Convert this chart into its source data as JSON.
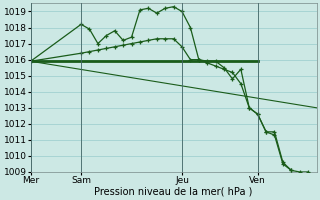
{
  "background_color": "#cce8e4",
  "grid_color": "#99cccc",
  "line_color": "#1a5c1a",
  "title": "Pression niveau de la mer( hPa )",
  "ylim": [
    1009,
    1019.5
  ],
  "yticks": [
    1009,
    1010,
    1011,
    1012,
    1013,
    1014,
    1015,
    1016,
    1017,
    1018,
    1019
  ],
  "day_labels": [
    "Mer",
    "Sam",
    "Jeu",
    "Ven"
  ],
  "day_positions": [
    0,
    6,
    18,
    27
  ],
  "xlim": [
    0,
    34
  ],
  "series1_x": [
    0,
    6,
    7,
    8,
    9,
    10,
    11,
    12,
    13,
    14,
    15,
    16,
    17,
    18,
    19,
    20,
    21,
    22,
    23,
    24,
    25,
    26,
    27,
    28,
    29,
    30,
    31,
    32,
    33
  ],
  "series1_y": [
    1015.9,
    1018.2,
    1017.9,
    1017.0,
    1017.5,
    1017.8,
    1017.2,
    1017.4,
    1019.1,
    1019.2,
    1018.9,
    1019.2,
    1019.3,
    1019.0,
    1018.0,
    1016.0,
    1015.9,
    1015.9,
    1015.5,
    1014.8,
    1015.4,
    1013.0,
    1012.6,
    1011.5,
    1011.5,
    1009.6,
    1009.1,
    1009.0,
    1009.0
  ],
  "series2_x": [
    0,
    6,
    7,
    8,
    9,
    10,
    11,
    12,
    13,
    14,
    15,
    16,
    17,
    18,
    19,
    20,
    21,
    22,
    23,
    24,
    25,
    26,
    27,
    28,
    29,
    30,
    31
  ],
  "series2_y": [
    1015.9,
    1016.4,
    1016.5,
    1016.6,
    1016.7,
    1016.8,
    1016.9,
    1017.0,
    1017.1,
    1017.2,
    1017.3,
    1017.3,
    1017.3,
    1016.8,
    1016.0,
    1016.0,
    1015.8,
    1015.6,
    1015.4,
    1015.2,
    1014.5,
    1013.0,
    1012.6,
    1011.5,
    1011.3,
    1009.5,
    1009.1
  ],
  "series3_x": [
    0,
    27
  ],
  "series3_y": [
    1015.9,
    1015.9
  ],
  "series4_x": [
    0,
    34
  ],
  "series4_y": [
    1015.9,
    1013.0
  ]
}
